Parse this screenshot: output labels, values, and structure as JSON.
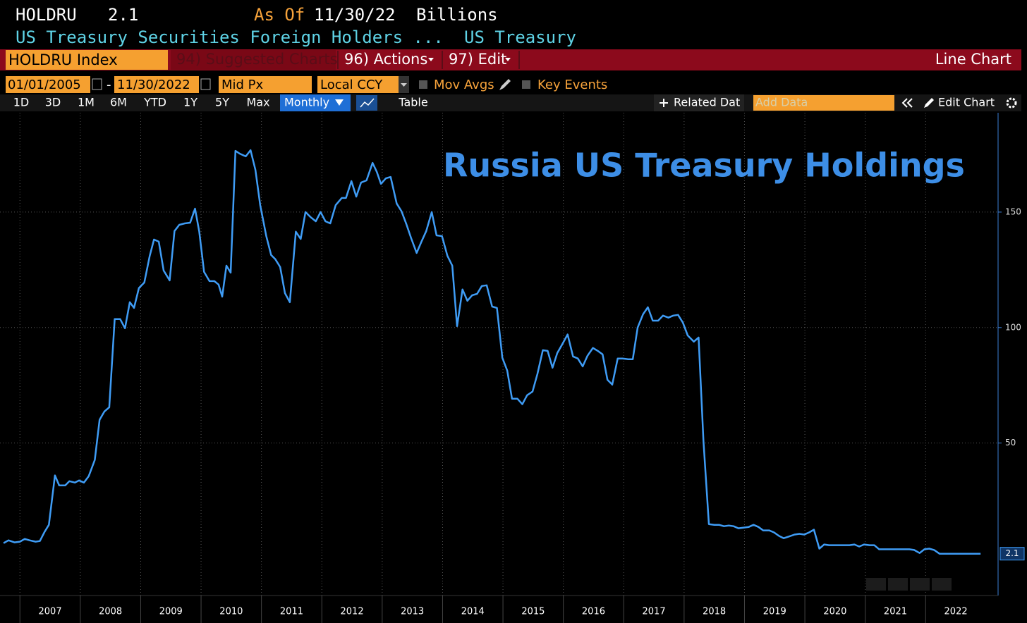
{
  "header": {
    "ticker": "HOLDRU",
    "last": "2.1",
    "as_of_label": "As Of",
    "as_of": "11/30/22",
    "units": "Billions",
    "description": "US Treasury Securities Foreign Holders ...",
    "source": "US Treasury"
  },
  "toolbar": {
    "security": "HOLDRU Index",
    "suggested": "94) Suggested Charts",
    "actions": "96) Actions",
    "edit": "97) Edit",
    "chart_type": "Line Chart"
  },
  "controls": {
    "start_date": "01/01/2005",
    "dash": "-",
    "end_date": "11/30/2022",
    "field": "Mid Px",
    "currency": "Local CCY",
    "mov_avgs": "Mov Avgs",
    "key_events": "Key Events"
  },
  "buttons": {
    "ranges": [
      "1D",
      "3D",
      "1M",
      "6M",
      "YTD",
      "1Y",
      "5Y",
      "Max"
    ],
    "period": "Monthly",
    "table": "Table",
    "related": "Related Dat",
    "add_data": "Add Data",
    "edit_chart": "Edit Chart"
  },
  "chart_data": {
    "type": "line",
    "title": "Russia US Treasury Holdings",
    "xlim": [
      2006.67,
      2023.2
    ],
    "xticks": [
      2007,
      2008,
      2009,
      2010,
      2011,
      2012,
      2013,
      2014,
      2015,
      2016,
      2017,
      2018,
      2019,
      2020,
      2021,
      2022
    ],
    "ylim": [
      -16,
      193
    ],
    "yticks": [
      50,
      100,
      150
    ],
    "grid": true,
    "x": [
      2006.73,
      2006.81,
      2006.91,
      2007.0,
      2007.08,
      2007.16,
      2007.26,
      2007.33,
      2007.41,
      2007.48,
      2007.58,
      2007.65,
      2007.75,
      2007.82,
      2007.91,
      2007.98,
      2008.06,
      2008.14,
      2008.24,
      2008.32,
      2008.4,
      2008.48,
      2008.57,
      2008.66,
      2008.74,
      2008.82,
      2008.89,
      2008.97,
      2009.06,
      2009.15,
      2009.22,
      2009.3,
      2009.38,
      2009.48,
      2009.56,
      2009.64,
      2009.73,
      2009.82,
      2009.9,
      2009.97,
      2010.05,
      2010.14,
      2010.22,
      2010.29,
      2010.35,
      2010.42,
      2010.49,
      2010.57,
      2010.64,
      2010.74,
      2010.82,
      2010.9,
      2010.98,
      2011.08,
      2011.16,
      2011.23,
      2011.31,
      2011.39,
      2011.47,
      2011.57,
      2011.65,
      2011.73,
      2011.81,
      2011.9,
      2011.98,
      2012.06,
      2012.14,
      2012.23,
      2012.33,
      2012.4,
      2012.49,
      2012.57,
      2012.65,
      2012.74,
      2012.84,
      2012.91,
      2012.98,
      2013.06,
      2013.14,
      2013.24,
      2013.32,
      2013.4,
      2013.48,
      2013.57,
      2013.65,
      2013.73,
      2013.82,
      2013.9,
      2013.99,
      2014.08,
      2014.16,
      2014.24,
      2014.33,
      2014.41,
      2014.49,
      2014.57,
      2014.65,
      2014.73,
      2014.82,
      2014.9,
      2014.99,
      2015.07,
      2015.15,
      2015.24,
      2015.32,
      2015.4,
      2015.49,
      2015.57,
      2015.66,
      2015.74,
      2015.82,
      2015.9,
      2015.98,
      2016.07,
      2016.16,
      2016.24,
      2016.32,
      2016.4,
      2016.49,
      2016.57,
      2016.65,
      2016.73,
      2016.81,
      2016.9,
      2016.98,
      2017.07,
      2017.15,
      2017.23,
      2017.32,
      2017.4,
      2017.48,
      2017.57,
      2017.65,
      2017.74,
      2017.82,
      2017.9,
      2017.98,
      2018.06,
      2018.16,
      2018.24,
      2018.32,
      2018.41,
      2018.5,
      2018.58,
      2018.66,
      2018.74,
      2018.82,
      2018.9,
      2018.99,
      2019.07,
      2019.15,
      2019.23,
      2019.31,
      2019.41,
      2019.49,
      2019.57,
      2019.65,
      2019.73,
      2019.83,
      2019.91,
      2019.99,
      2020.07,
      2020.15,
      2020.24,
      2020.32,
      2020.4,
      2020.48,
      2020.57,
      2020.66,
      2020.74,
      2020.82,
      2020.9,
      2020.98,
      2021.07,
      2021.15,
      2021.23,
      2021.32,
      2021.4,
      2021.49,
      2021.57,
      2021.65,
      2021.73,
      2021.81,
      2021.9,
      2021.98,
      2022.06,
      2022.14,
      2022.23,
      2022.32,
      2022.4,
      2022.48,
      2022.56,
      2022.65,
      2022.74,
      2022.82,
      2022.91
    ],
    "series": [
      {
        "color": "#3f9cf5",
        "values": [
          6.7,
          7.9,
          7.0,
          7.3,
          8.5,
          7.9,
          7.3,
          7.6,
          11.6,
          14.6,
          36.0,
          31.7,
          31.7,
          33.5,
          32.9,
          33.8,
          32.9,
          35.7,
          42.7,
          60.1,
          63.7,
          65.5,
          103.7,
          103.7,
          99.7,
          111.0,
          108.5,
          117.1,
          119.5,
          131.1,
          138.1,
          137.2,
          124.7,
          120.4,
          141.8,
          144.5,
          145.1,
          145.4,
          151.5,
          141.5,
          124.1,
          120.1,
          120.1,
          118.6,
          113.4,
          126.8,
          123.8,
          176.5,
          175.3,
          174.1,
          176.8,
          168.3,
          153.0,
          139.6,
          131.4,
          129.6,
          126.2,
          114.9,
          111.0,
          141.5,
          138.4,
          150.0,
          147.9,
          146.0,
          150.0,
          146.0,
          145.1,
          153.0,
          156.1,
          156.1,
          163.4,
          156.7,
          162.8,
          163.7,
          171.3,
          167.4,
          162.2,
          164.6,
          165.2,
          153.7,
          150.3,
          144.8,
          138.7,
          132.3,
          137.2,
          141.8,
          150.0,
          139.9,
          139.6,
          131.1,
          126.8,
          100.6,
          116.5,
          111.6,
          114.0,
          114.6,
          118.0,
          118.3,
          109.1,
          108.5,
          86.9,
          81.4,
          69.2,
          69.2,
          66.8,
          70.7,
          72.3,
          79.9,
          90.2,
          89.9,
          82.6,
          89.0,
          92.7,
          97.0,
          87.5,
          86.6,
          83.2,
          87.8,
          91.2,
          89.9,
          88.4,
          77.4,
          75.3,
          86.6,
          86.6,
          86.3,
          86.3,
          100.0,
          105.8,
          108.8,
          103.0,
          103.0,
          105.2,
          104.3,
          105.2,
          105.5,
          102.1,
          96.6,
          93.9,
          95.7,
          50.9,
          14.9,
          14.6,
          14.6,
          14.0,
          14.3,
          14.0,
          13.1,
          13.4,
          13.7,
          14.6,
          13.7,
          12.2,
          12.2,
          11.3,
          9.8,
          8.8,
          9.5,
          10.4,
          10.7,
          10.4,
          11.3,
          12.5,
          4.3,
          6.1,
          5.8,
          5.8,
          5.8,
          5.8,
          5.8,
          6.1,
          5.2,
          6.1,
          5.8,
          5.8,
          4.0,
          4.0,
          4.0,
          4.0,
          4.0,
          4.0,
          4.0,
          3.7,
          2.4,
          4.0,
          4.3,
          3.7,
          2.1,
          2.1,
          2.1,
          2.1,
          2.1,
          2.1,
          2.1,
          2.1,
          2.1
        ]
      }
    ]
  }
}
